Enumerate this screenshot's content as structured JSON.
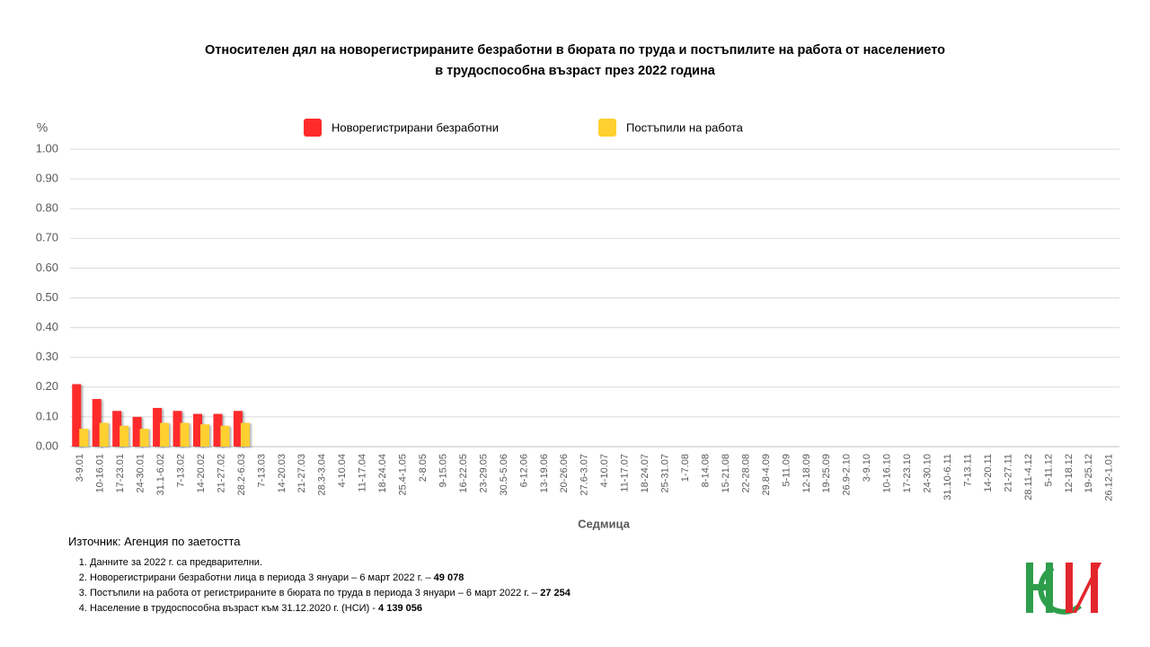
{
  "chart_data": {
    "type": "bar",
    "title": [
      "Относителен дял на новорегистрираните безработни в бюрата по труда и постъпилите на работа от населението",
      "в трудоспособна възраст през 2022 година"
    ],
    "y_axis_label": "%",
    "x_axis_label": "Седмица",
    "categories": [
      "3-9.01",
      "10-16.01",
      "17-23.01",
      "24-30.01",
      "31.1-6.02",
      "7-13.02",
      "14-20.02",
      "21-27.02",
      "28.2-6.03",
      "7-13.03",
      "14-20.03",
      "21-27.03",
      "28.3-3.04",
      "4-10.04",
      "11-17.04",
      "18-24.04",
      "25.4-1.05",
      "2-8.05",
      "9-15.05",
      "16-22.05",
      "23-29.05",
      "30.5-5.06",
      "6-12.06",
      "13-19.06",
      "20-26.06",
      "27.6-3.07",
      "4-10.07",
      "11-17.07",
      "18-24.07",
      "25-31.07",
      "1-7.08",
      "8-14.08",
      "15-21.08",
      "22-28.08",
      "29.8-4.09",
      "5-11.09",
      "12-18.09",
      "19-25.09",
      "26.9-2.10",
      "3-9.10",
      "10-16.10",
      "17-23.10",
      "24-30.10",
      "31.10-6.11",
      "7-13.11",
      "14-20.11",
      "21-27.11",
      "28.11-4.12",
      "5-11.12",
      "12-18.12",
      "19-25.12",
      "26.12-1.01"
    ],
    "series": [
      {
        "name": "Новорегистрирани безработни",
        "color": "#ff2b2b",
        "values": [
          0.21,
          0.16,
          0.12,
          0.1,
          0.13,
          0.12,
          0.11,
          0.11,
          0.12,
          null,
          null,
          null,
          null,
          null,
          null,
          null,
          null,
          null,
          null,
          null,
          null,
          null,
          null,
          null,
          null,
          null,
          null,
          null,
          null,
          null,
          null,
          null,
          null,
          null,
          null,
          null,
          null,
          null,
          null,
          null,
          null,
          null,
          null,
          null,
          null,
          null,
          null,
          null,
          null,
          null,
          null,
          null
        ]
      },
      {
        "name": "Постъпили на работа",
        "color": "#ffd030",
        "values": [
          0.06,
          0.08,
          0.07,
          0.06,
          0.08,
          0.08,
          0.075,
          0.07,
          0.08,
          null,
          null,
          null,
          null,
          null,
          null,
          null,
          null,
          null,
          null,
          null,
          null,
          null,
          null,
          null,
          null,
          null,
          null,
          null,
          null,
          null,
          null,
          null,
          null,
          null,
          null,
          null,
          null,
          null,
          null,
          null,
          null,
          null,
          null,
          null,
          null,
          null,
          null,
          null,
          null,
          null,
          null,
          null
        ]
      }
    ],
    "ylim": [
      0,
      1
    ],
    "yticks": [
      {
        "value": 0,
        "label": "0.00"
      },
      {
        "value": 0.1,
        "label": "0.10"
      },
      {
        "value": 0.2,
        "label": "0.20"
      },
      {
        "value": 0.3,
        "label": "0.30"
      },
      {
        "value": 0.4,
        "label": "0.40"
      },
      {
        "value": 0.5,
        "label": "0.50"
      },
      {
        "value": 0.6,
        "label": "0.60"
      },
      {
        "value": 0.7,
        "label": "0.70"
      },
      {
        "value": 0.8,
        "label": "0.80"
      },
      {
        "value": 0.9,
        "label": "0.90"
      },
      {
        "value": 1,
        "label": "1.00"
      }
    ],
    "grid": true,
    "legend": "top"
  },
  "footer": {
    "source": "Източник: Агенция по заетостта",
    "notes": [
      {
        "text": "Данните за 2022 г. са предварителни.",
        "bold": null
      },
      {
        "text": "Новорегистрирани безработни лица в периода 3 януари – 6 март 2022 г. –",
        "bold": "49 078"
      },
      {
        "text": "Постъпили на работа от регистрираните в бюрата по труда в периода 3 януари – 6 март 2022 г. –",
        "bold": "27 254"
      },
      {
        "text": "Население в трудоспособна възраст към 31.12.2020 г. (НСИ)  -",
        "bold": "4 139 056"
      }
    ]
  }
}
